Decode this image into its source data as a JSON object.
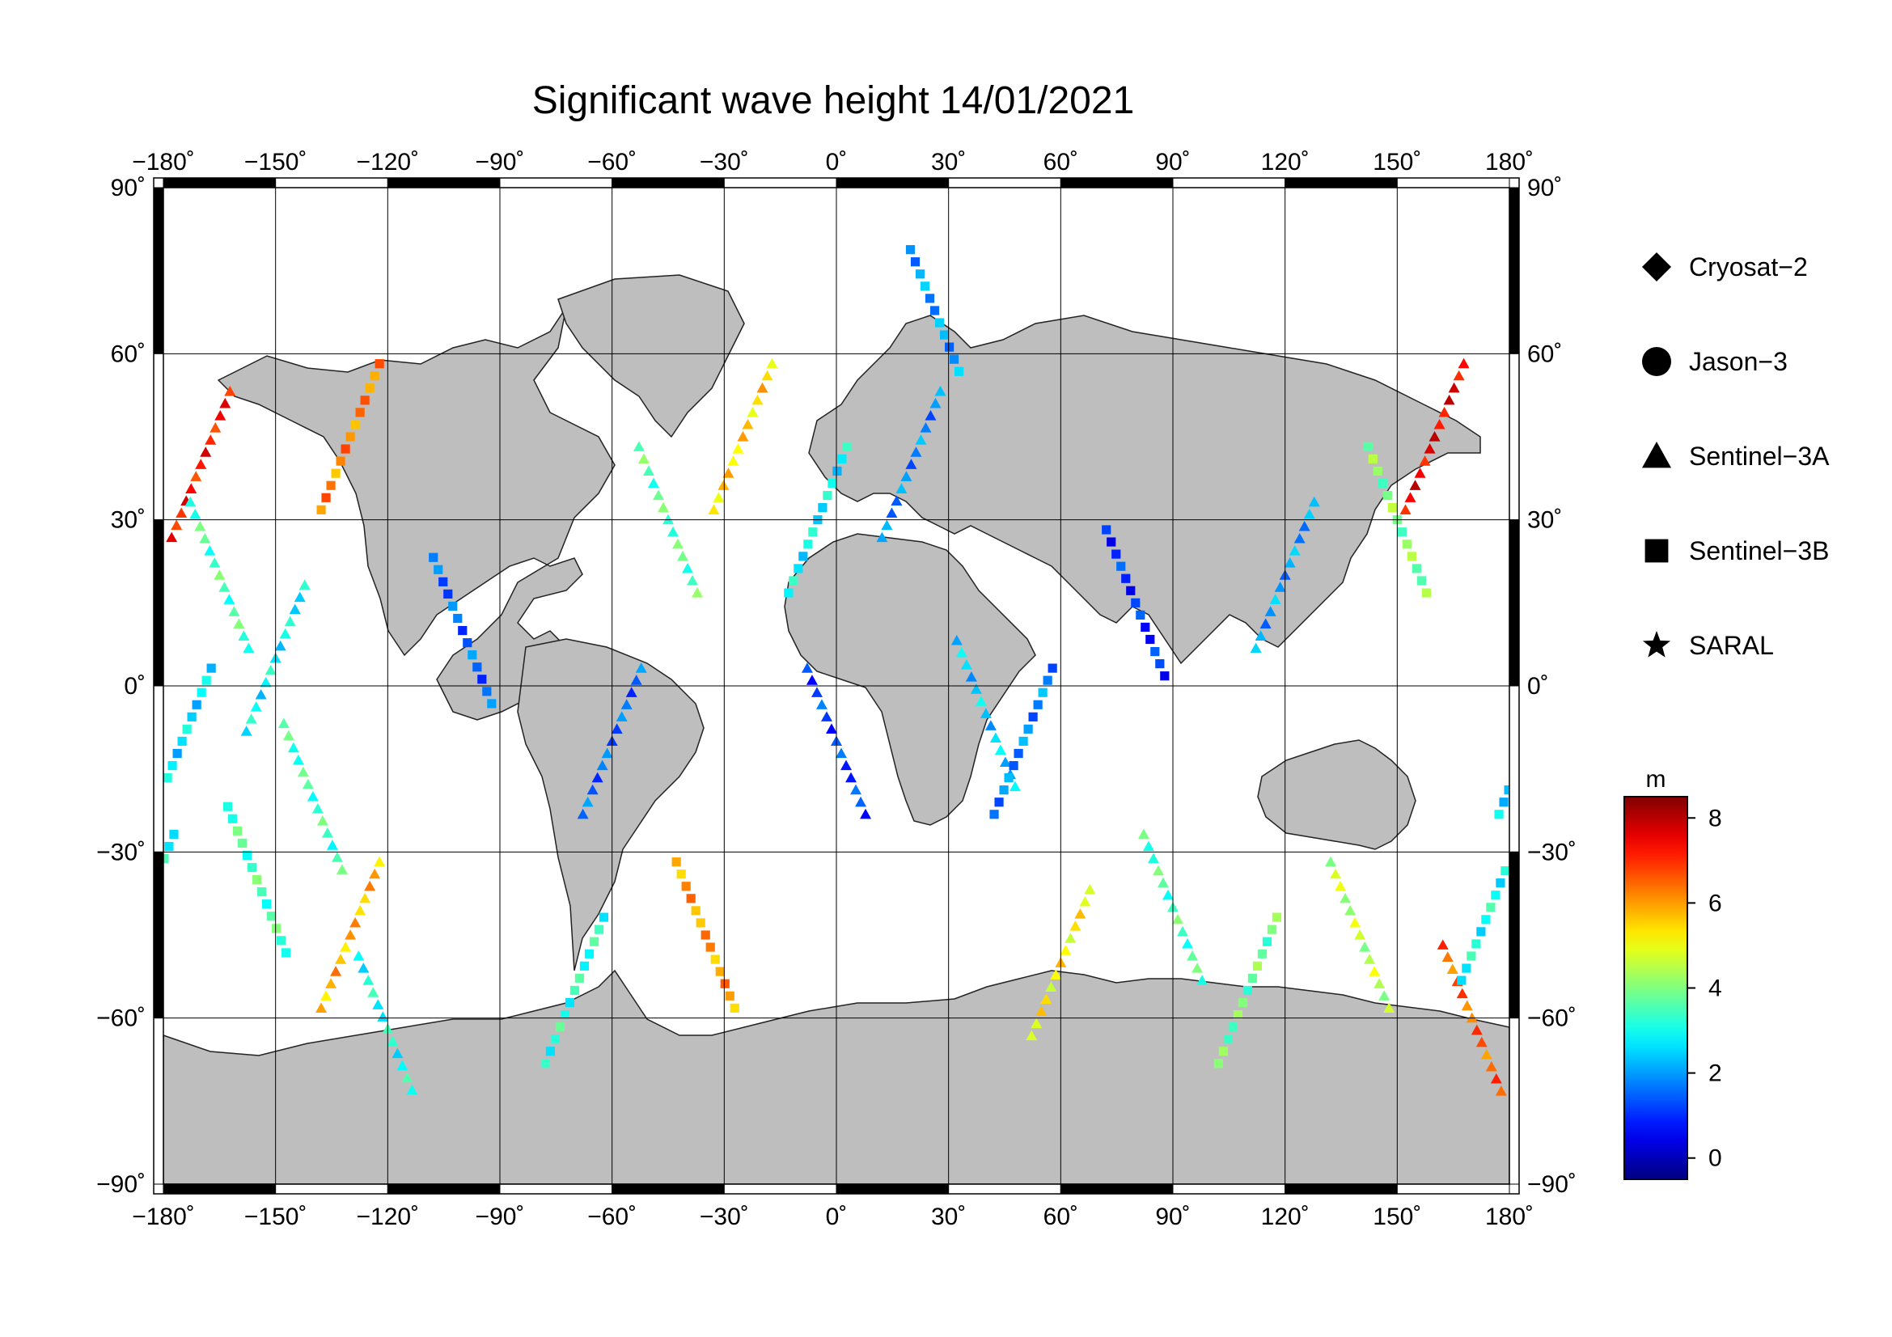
{
  "title": "Significant wave height 14/01/2021",
  "map": {
    "projection": "plate-carree",
    "lon_range": [
      -180,
      180
    ],
    "lat_range": [
      -90,
      90
    ],
    "lon_ticks": [
      {
        "value": -180,
        "label": "−180˚"
      },
      {
        "value": -150,
        "label": "−150˚"
      },
      {
        "value": -120,
        "label": "−120˚"
      },
      {
        "value": -90,
        "label": "−90˚"
      },
      {
        "value": -60,
        "label": "−60˚"
      },
      {
        "value": -30,
        "label": "−30˚"
      },
      {
        "value": 0,
        "label": "0˚"
      },
      {
        "value": 30,
        "label": "30˚"
      },
      {
        "value": 60,
        "label": "60˚"
      },
      {
        "value": 90,
        "label": "90˚"
      },
      {
        "value": 120,
        "label": "120˚"
      },
      {
        "value": 150,
        "label": "150˚"
      },
      {
        "value": 180,
        "label": "180˚"
      }
    ],
    "lat_ticks": [
      {
        "value": 90,
        "label": "90˚"
      },
      {
        "value": 60,
        "label": "60˚"
      },
      {
        "value": 30,
        "label": "30˚"
      },
      {
        "value": 0,
        "label": "0˚"
      },
      {
        "value": -30,
        "label": "−30˚"
      },
      {
        "value": -60,
        "label": "−60˚"
      },
      {
        "value": -90,
        "label": "−90˚"
      }
    ],
    "grid": true,
    "land_color": "#bebebe",
    "ocean_color": "#ffffff"
  },
  "legend": {
    "position": "right",
    "items": [
      {
        "symbol": "diamond",
        "label": "Cryosat−2"
      },
      {
        "symbol": "circle",
        "label": "Jason−3"
      },
      {
        "symbol": "triangle",
        "label": "Sentinel−3A"
      },
      {
        "symbol": "square",
        "label": "Sentinel−3B"
      },
      {
        "symbol": "star",
        "label": "SARAL"
      }
    ]
  },
  "colorbar": {
    "unit": "m",
    "min": -0.5,
    "max": 8.5,
    "tick_values": [
      0,
      2,
      4,
      6,
      8
    ],
    "tick_labels": [
      "0",
      "2",
      "4",
      "6",
      "8"
    ],
    "colormap": "jet"
  },
  "chart_data": {
    "type": "scatter",
    "title": "Significant wave height 14/01/2021",
    "xlabel": "",
    "ylabel": "",
    "xlim": [
      -180,
      180
    ],
    "ylim": [
      -90,
      90
    ],
    "value_unit": "m",
    "value_range": [
      0,
      8
    ],
    "series": [
      {
        "name": "Sentinel−3A",
        "marker": "triangle",
        "points": [
          [
            -170,
            40,
            7.2
          ],
          [
            -165,
            20,
            3.5
          ],
          [
            -150,
            5,
            2.8
          ],
          [
            -140,
            -20,
            3.4
          ],
          [
            -130,
            -45,
            5.8
          ],
          [
            -120,
            -62,
            3.0
          ],
          [
            -60,
            -10,
            1.5
          ],
          [
            -45,
            30,
            3.6
          ],
          [
            -25,
            45,
            5.5
          ],
          [
            0,
            -10,
            1.2
          ],
          [
            20,
            40,
            1.8
          ],
          [
            40,
            -5,
            2.4
          ],
          [
            60,
            -50,
            5.2
          ],
          [
            90,
            -40,
            3.5
          ],
          [
            120,
            20,
            2.0
          ],
          [
            140,
            -45,
            4.5
          ],
          [
            160,
            45,
            7.5
          ],
          [
            170,
            -60,
            6.5
          ]
        ]
      },
      {
        "name": "Sentinel−3B",
        "marker": "square",
        "points": [
          [
            -175,
            -10,
            2.6
          ],
          [
            -155,
            -35,
            3.5
          ],
          [
            -130,
            45,
            6.2
          ],
          [
            -100,
            10,
            1.5
          ],
          [
            -70,
            -55,
            3.2
          ],
          [
            -35,
            -45,
            6.0
          ],
          [
            -5,
            30,
            2.8
          ],
          [
            25,
            70,
            2.0
          ],
          [
            50,
            -10,
            1.8
          ],
          [
            80,
            15,
            1.0
          ],
          [
            110,
            -55,
            3.8
          ],
          [
            150,
            30,
            4.0
          ],
          [
            175,
            -40,
            3.0
          ]
        ]
      }
    ]
  }
}
